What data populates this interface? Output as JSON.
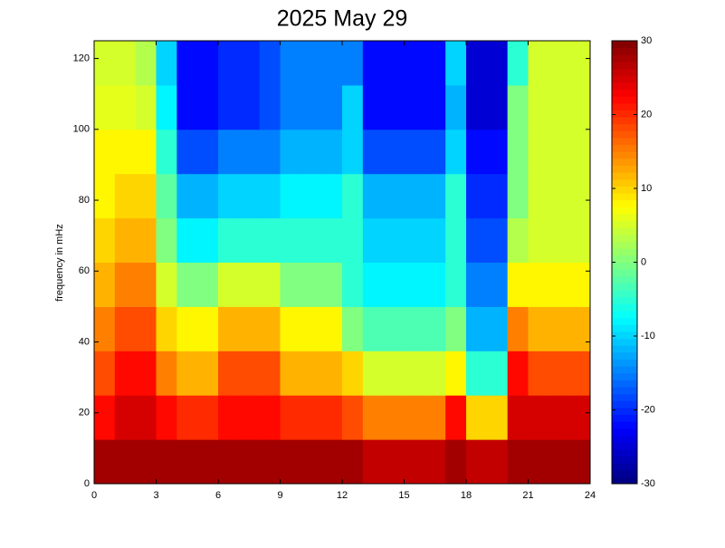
{
  "chart_data": {
    "type": "heatmap",
    "title": "2025 May 29",
    "y_label": "frequency in mHz",
    "xbins": [
      0,
      1,
      2,
      3,
      4,
      5,
      6,
      7,
      8,
      9,
      10,
      11,
      12,
      13,
      14,
      15,
      16,
      17,
      18,
      19,
      20,
      21,
      22,
      23,
      24
    ],
    "ybins": [
      0,
      12.5,
      25,
      37.5,
      50,
      62.5,
      75,
      87.5,
      100,
      112.5,
      125
    ],
    "values": [
      [
        28,
        28,
        28,
        28,
        28,
        28,
        28,
        28,
        28,
        28,
        28,
        28,
        28,
        26,
        26,
        26,
        26,
        28,
        26,
        26,
        28,
        28,
        28,
        28
      ],
      [
        22,
        25,
        25,
        22,
        20,
        20,
        22,
        22,
        22,
        20,
        20,
        20,
        18,
        15,
        15,
        15,
        15,
        22,
        10,
        10,
        25,
        25,
        25,
        25
      ],
      [
        18,
        22,
        22,
        15,
        12,
        12,
        18,
        18,
        18,
        12,
        12,
        12,
        10,
        5,
        5,
        5,
        5,
        8,
        -5,
        -5,
        22,
        18,
        18,
        18
      ],
      [
        15,
        18,
        18,
        10,
        8,
        8,
        12,
        12,
        12,
        8,
        8,
        8,
        0,
        -3,
        -3,
        -3,
        -3,
        0,
        -12,
        -12,
        15,
        12,
        12,
        12
      ],
      [
        12,
        15,
        15,
        5,
        0,
        0,
        5,
        5,
        5,
        0,
        0,
        0,
        -5,
        -8,
        -8,
        -8,
        -8,
        -5,
        -15,
        -15,
        8,
        8,
        8,
        8
      ],
      [
        10,
        12,
        12,
        0,
        -8,
        -8,
        -5,
        -5,
        -5,
        -5,
        -5,
        -5,
        -5,
        -10,
        -10,
        -10,
        -10,
        -5,
        -18,
        -18,
        3,
        5,
        5,
        5
      ],
      [
        8,
        10,
        10,
        -2,
        -12,
        -12,
        -10,
        -10,
        -10,
        -8,
        -8,
        -8,
        -5,
        -12,
        -12,
        -12,
        -12,
        -5,
        -20,
        -20,
        0,
        5,
        5,
        5
      ],
      [
        8,
        8,
        8,
        -5,
        -18,
        -18,
        -15,
        -15,
        -15,
        -12,
        -12,
        -12,
        -10,
        -18,
        -18,
        -18,
        -18,
        -10,
        -22,
        -22,
        0,
        5,
        5,
        5
      ],
      [
        6,
        6,
        5,
        -8,
        -22,
        -22,
        -20,
        -20,
        -18,
        -15,
        -15,
        -15,
        -10,
        -22,
        -22,
        -22,
        -22,
        -12,
        -25,
        -25,
        0,
        5,
        5,
        5
      ],
      [
        5,
        5,
        3,
        -10,
        -22,
        -22,
        -20,
        -20,
        -18,
        -15,
        -15,
        -15,
        -15,
        -22,
        -22,
        -22,
        -22,
        -10,
        -25,
        -25,
        -5,
        5,
        5,
        5
      ]
    ],
    "xlim": [
      0,
      24
    ],
    "xticks": [
      0,
      3,
      6,
      9,
      12,
      15,
      18,
      21,
      24
    ],
    "ylim": [
      0,
      125
    ],
    "yticks": [
      0,
      20,
      40,
      60,
      80,
      100,
      120
    ],
    "colormap": "jet",
    "clim": [
      -30,
      30
    ],
    "cticks": [
      -30,
      -20,
      -10,
      0,
      10,
      20,
      30
    ]
  }
}
